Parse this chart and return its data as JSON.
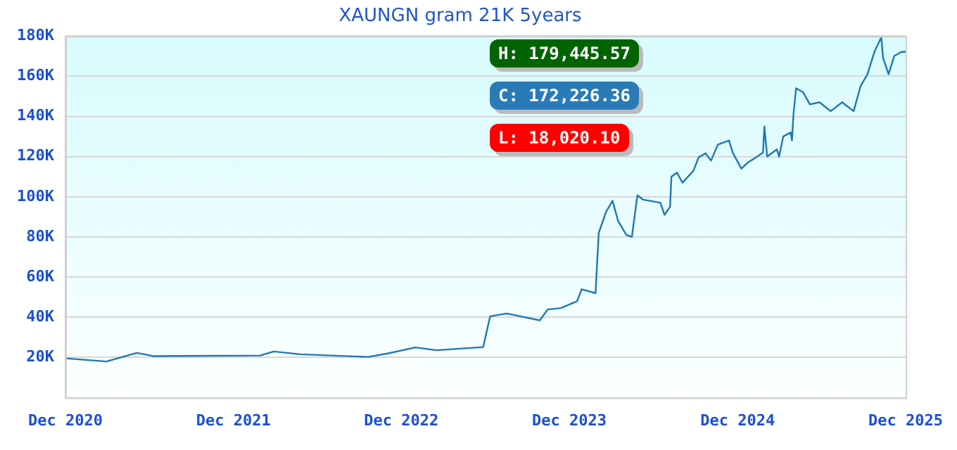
{
  "chart_data": {
    "type": "line",
    "title": "XAUNGN gram 21K 5years",
    "x": [
      "2020-12-01",
      "2021-02-28",
      "2021-05-05",
      "2021-06-10",
      "2022-01-28",
      "2022-02-27",
      "2022-04-25",
      "2022-09-20",
      "2022-11-01",
      "2023-01-01",
      "2023-02-15",
      "2023-05-28",
      "2023-06-12",
      "2023-07-18",
      "2023-09-28",
      "2023-10-15",
      "2023-11-13",
      "2023-12-18",
      "2023-12-28",
      "2024-01-27",
      "2024-02-03",
      "2024-02-19",
      "2024-03-04",
      "2024-03-16",
      "2024-04-03",
      "2024-04-15",
      "2024-04-27",
      "2024-05-09",
      "2024-06-16",
      "2024-06-25",
      "2024-07-07",
      "2024-07-10",
      "2024-07-22",
      "2024-08-03",
      "2024-08-27",
      "2024-09-07",
      "2024-09-22",
      "2024-10-04",
      "2024-10-19",
      "2024-11-12",
      "2024-11-21",
      "2024-12-09",
      "2024-12-23",
      "2025-01-10",
      "2025-01-25",
      "2025-01-28",
      "2025-02-03",
      "2025-02-24",
      "2025-03-01",
      "2025-03-10",
      "2025-03-26",
      "2025-03-29",
      "2025-04-01",
      "2025-04-07",
      "2025-04-22",
      "2025-05-07",
      "2025-05-28",
      "2025-06-21",
      "2025-07-16",
      "2025-08-10",
      "2025-08-25",
      "2025-09-09",
      "2025-09-24",
      "2025-10-09",
      "2025-10-13",
      "2025-10-25",
      "2025-11-06",
      "2025-11-21",
      "2025-12-01"
    ],
    "series": [
      {
        "color": "#1f77b4",
        "values": [
          19600,
          18000,
          22300,
          20700,
          21000,
          23000,
          21600,
          20300,
          22000,
          25000,
          23600,
          25200,
          40500,
          41900,
          38500,
          43900,
          44600,
          48000,
          54000,
          52000,
          82000,
          92500,
          98000,
          88000,
          81000,
          80000,
          100700,
          98600,
          97000,
          91000,
          95000,
          110000,
          112000,
          107000,
          113000,
          119600,
          121600,
          118000,
          126000,
          128000,
          121600,
          114000,
          117000,
          119600,
          122000,
          135000,
          120000,
          123600,
          120000,
          130000,
          132000,
          128000,
          140500,
          154000,
          152000,
          146000,
          147000,
          142600,
          147000,
          142600,
          155000,
          161000,
          172000,
          179400,
          169000,
          161000,
          170000,
          172000,
          172200
        ]
      }
    ],
    "xlim": [
      "2020-12-01",
      "2025-12-01"
    ],
    "xticks": [
      {
        "value": "2020-12-01",
        "label": "Dec 2020"
      },
      {
        "value": "2021-12-01",
        "label": "Dec 2021"
      },
      {
        "value": "2022-12-01",
        "label": "Dec 2022"
      },
      {
        "value": "2023-12-01",
        "label": "Dec 2023"
      },
      {
        "value": "2024-12-01",
        "label": "Dec 2024"
      },
      {
        "value": "2025-12-01",
        "label": "Dec 2025"
      }
    ],
    "ylim": [
      0,
      180000
    ],
    "yticks": [
      {
        "value": 20000,
        "label": "20K"
      },
      {
        "value": 40000,
        "label": "40K"
      },
      {
        "value": 60000,
        "label": "60K"
      },
      {
        "value": 80000,
        "label": "80K"
      },
      {
        "value": 100000,
        "label": "100K"
      },
      {
        "value": 120000,
        "label": "120K"
      },
      {
        "value": 140000,
        "label": "140K"
      },
      {
        "value": 160000,
        "label": "160K"
      },
      {
        "value": 180000,
        "label": "180K"
      }
    ],
    "grid": "y",
    "marker": "none",
    "line_style": "solid",
    "annotations": [
      "H: 179,445.57",
      "C: 172,226.36",
      "L: 18,020.10"
    ]
  }
}
